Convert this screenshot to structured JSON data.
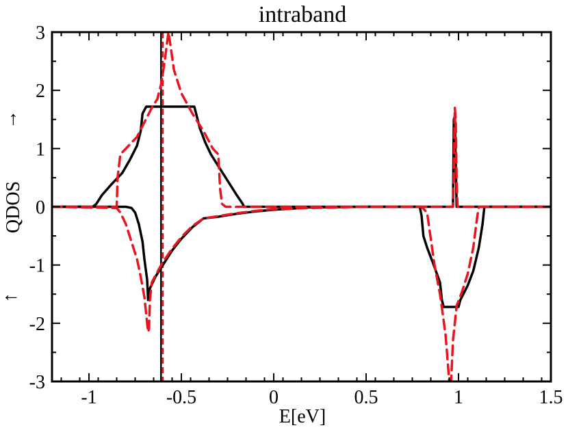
{
  "chart_data": {
    "type": "line",
    "title": "intraband",
    "xlabel": "E[eV]",
    "ylabel": "QDOS",
    "ylabel_up_arrow": "→",
    "ylabel_down_arrow": "←",
    "xlim": [
      -1.2,
      1.5
    ],
    "ylim": [
      -3,
      3
    ],
    "xticks": [
      -1,
      -0.5,
      0,
      0.5,
      1,
      1.5
    ],
    "xtick_labels": [
      "-1",
      "-0.5",
      "0",
      "0.5",
      "1",
      "1.5"
    ],
    "yticks": [
      -3,
      -2,
      -1,
      0,
      1,
      2,
      3
    ],
    "ytick_labels": [
      "-3",
      "-2",
      "-1",
      "0",
      "1",
      "2",
      "3"
    ],
    "grid": false,
    "colors": {
      "solid": "#000000",
      "dashed": "#e8141e"
    },
    "vlines": [
      {
        "x": -0.61,
        "style": "solid",
        "color": "#000000"
      },
      {
        "x": -0.6,
        "style": "dashed",
        "color": "#e8141e"
      }
    ],
    "series": [
      {
        "style": "solid",
        "color": "#000000",
        "x": [
          -1.2,
          -0.98,
          -0.96,
          -0.93,
          -0.88,
          -0.82,
          -0.78,
          -0.74,
          -0.72,
          -0.71,
          -0.69,
          -0.6,
          -0.5,
          -0.43,
          -0.42,
          -0.4,
          -0.37,
          -0.34,
          -0.3,
          -0.25,
          -0.2,
          -0.17,
          -0.16,
          -0.15,
          0.0,
          0.5,
          0.97,
          0.975,
          0.98,
          0.985,
          0.99,
          1.5
        ],
        "y": [
          0,
          0,
          0.05,
          0.2,
          0.38,
          0.58,
          0.8,
          1.05,
          1.3,
          1.6,
          1.72,
          1.72,
          1.72,
          1.72,
          1.6,
          1.35,
          1.1,
          0.9,
          0.7,
          0.45,
          0.2,
          0.06,
          0,
          0,
          0,
          0,
          0,
          1.5,
          1.55,
          0.8,
          0,
          0
        ]
      },
      {
        "style": "solid",
        "color": "#000000",
        "x": [
          -1.2,
          -0.8,
          -0.77,
          -0.75,
          -0.73,
          -0.71,
          -0.7,
          -0.685,
          -0.68,
          -0.67,
          -0.64,
          -0.6,
          -0.55,
          -0.5,
          -0.44,
          -0.38,
          -0.3,
          -0.2,
          -0.1,
          0.0,
          0.1,
          0.2,
          0.5,
          0.79,
          0.8,
          0.81,
          0.83,
          0.86,
          0.9,
          0.91,
          0.92,
          0.98,
          1.0,
          1.01,
          1.05,
          1.08,
          1.11,
          1.13,
          1.14,
          1.5
        ],
        "y": [
          0,
          0,
          -0.02,
          -0.1,
          -0.3,
          -0.6,
          -0.9,
          -1.25,
          -1.6,
          -1.4,
          -1.2,
          -1.0,
          -0.75,
          -0.55,
          -0.35,
          -0.2,
          -0.17,
          -0.12,
          -0.08,
          -0.05,
          -0.03,
          -0.01,
          0,
          0,
          -0.15,
          -0.5,
          -0.7,
          -0.95,
          -1.3,
          -1.6,
          -1.72,
          -1.72,
          -1.72,
          -1.6,
          -1.35,
          -1.1,
          -0.7,
          -0.3,
          0,
          0
        ]
      },
      {
        "style": "dashed",
        "color": "#e8141e",
        "x": [
          -1.2,
          -0.85,
          -0.845,
          -0.83,
          -0.8,
          -0.74,
          -0.7,
          -0.66,
          -0.63,
          -0.61,
          -0.59,
          -0.57,
          -0.56,
          -0.54,
          -0.5,
          -0.44,
          -0.38,
          -0.33,
          -0.3,
          -0.29,
          -0.28,
          -0.26,
          0.0,
          0.97,
          0.975,
          0.98,
          0.985,
          0.99,
          0.995,
          1.5
        ],
        "y": [
          0,
          0,
          0.5,
          0.9,
          1.0,
          1.2,
          1.45,
          1.7,
          1.85,
          2.1,
          2.5,
          3.0,
          2.8,
          2.35,
          1.95,
          1.6,
          1.3,
          1.0,
          0.9,
          0.3,
          0.05,
          0,
          0,
          0,
          0.6,
          1.7,
          1.5,
          0.4,
          0,
          0
        ]
      },
      {
        "style": "dashed",
        "color": "#e8141e",
        "x": [
          -1.2,
          -0.85,
          -0.83,
          -0.8,
          -0.77,
          -0.74,
          -0.72,
          -0.7,
          -0.69,
          -0.68,
          -0.675,
          -0.67,
          -0.66,
          -0.63,
          -0.6,
          -0.55,
          -0.5,
          -0.44,
          -0.38,
          -0.3,
          -0.2,
          -0.1,
          0.0,
          0.2,
          0.5,
          0.8,
          0.83,
          0.85,
          0.87,
          0.9,
          0.93,
          0.95,
          0.96,
          0.97,
          0.99,
          1.02,
          1.05,
          1.08,
          1.1,
          1.11,
          1.5
        ],
        "y": [
          0,
          -0.02,
          -0.1,
          -0.3,
          -0.6,
          -0.9,
          -1.2,
          -1.55,
          -1.85,
          -2.15,
          -2.1,
          -1.6,
          -1.3,
          -1.12,
          -0.95,
          -0.72,
          -0.52,
          -0.33,
          -0.2,
          -0.16,
          -0.11,
          -0.07,
          -0.04,
          -0.02,
          0,
          0,
          -0.1,
          -0.55,
          -1.0,
          -1.5,
          -2.2,
          -3.0,
          -3.0,
          -2.3,
          -1.7,
          -1.45,
          -1.15,
          -0.7,
          -0.2,
          0,
          0
        ]
      }
    ]
  }
}
